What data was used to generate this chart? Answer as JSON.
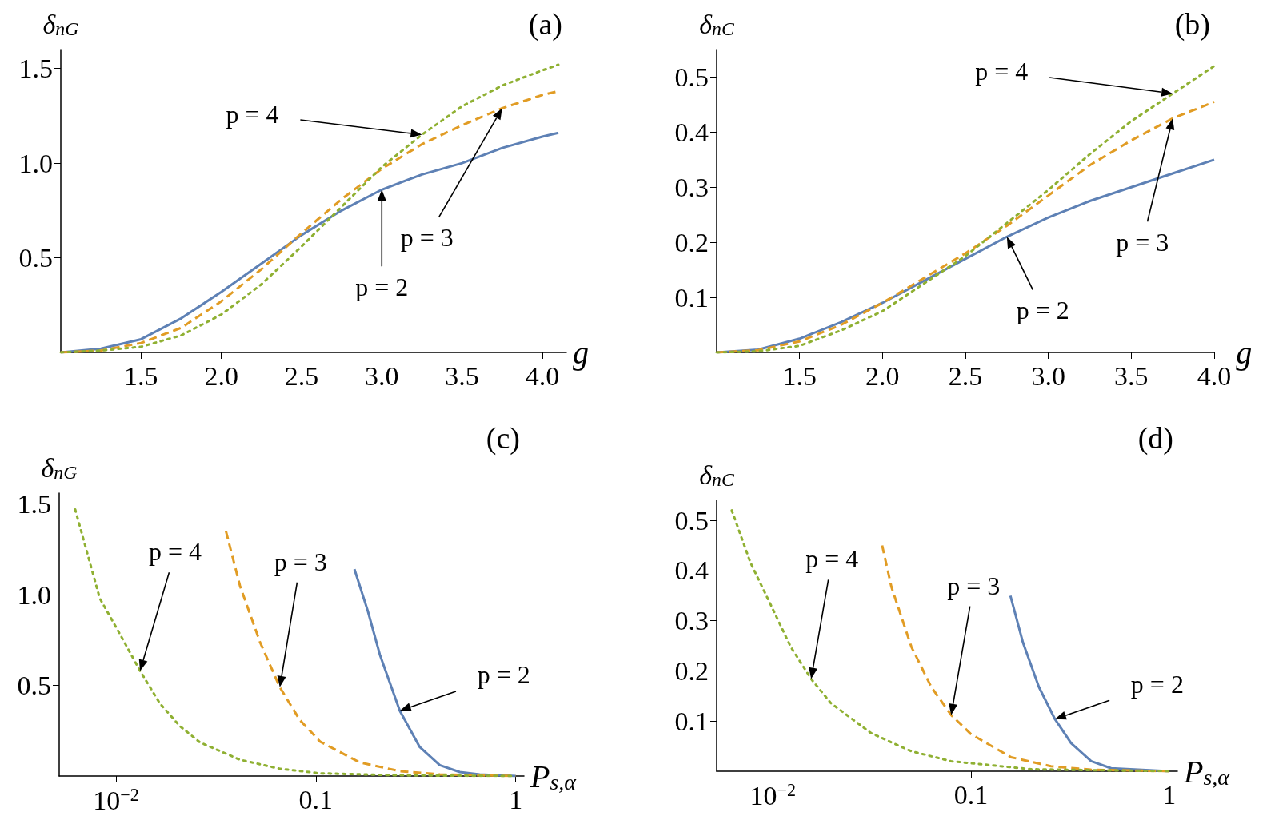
{
  "chart_data": [
    {
      "type": "line",
      "title": "(a)",
      "xlabel": "g",
      "ylabel": "δ$_{nG}$",
      "xlim": [
        1,
        4.15
      ],
      "ylim": [
        0,
        1.6
      ],
      "xticks": [
        1.5,
        {
          "value": 2,
          "label": "2.0"
        },
        2.5,
        {
          "value": 3,
          "label": "3.0"
        },
        3.5,
        {
          "value": 4,
          "label": "4.0"
        }
      ],
      "yticks": [
        0.5,
        {
          "value": 1,
          "label": "1.0"
        },
        1.5
      ],
      "series": [
        {
          "color": "#5e81b5",
          "line_style": "solid",
          "x": [
            1,
            1.25,
            1.5,
            1.75,
            2,
            2.25,
            2.5,
            2.75,
            3,
            3.25,
            3.5,
            3.75,
            4,
            4.1
          ],
          "values": [
            0,
            0.02,
            0.07,
            0.18,
            0.32,
            0.47,
            0.62,
            0.75,
            0.86,
            0.94,
            1,
            1.08,
            1.14,
            1.16
          ]
        },
        {
          "color": "#e19c24",
          "line_style": "dashed",
          "x": [
            1,
            1.25,
            1.5,
            1.75,
            2,
            2.25,
            2.5,
            2.75,
            3,
            3.25,
            3.5,
            3.75,
            4,
            4.1
          ],
          "values": [
            0,
            0.01,
            0.05,
            0.13,
            0.27,
            0.44,
            0.63,
            0.81,
            0.97,
            1.1,
            1.2,
            1.29,
            1.36,
            1.38
          ]
        },
        {
          "color": "#8fb032",
          "line_style": "dotted",
          "x": [
            1,
            1.25,
            1.5,
            1.75,
            2,
            2.25,
            2.5,
            2.75,
            3,
            3.25,
            3.5,
            3.75,
            4,
            4.1
          ],
          "values": [
            0,
            0.01,
            0.03,
            0.09,
            0.2,
            0.36,
            0.56,
            0.77,
            0.98,
            1.15,
            1.3,
            1.41,
            1.49,
            1.52
          ]
        }
      ],
      "annotations": [
        "p = 4",
        "p = 3",
        "p = 2"
      ]
    },
    {
      "type": "line",
      "title": "(b)",
      "xlabel": "g",
      "ylabel": "δ$_{nC}$",
      "xlim": [
        1,
        4
      ],
      "ylim": [
        0,
        0.55
      ],
      "xticks": [
        1.5,
        {
          "value": 2,
          "label": "2.0"
        },
        2.5,
        {
          "value": 3,
          "label": "3.0"
        },
        3.5,
        {
          "value": 4,
          "label": "4.0"
        }
      ],
      "yticks": [
        0.1,
        0.2,
        0.3,
        0.4,
        0.5
      ],
      "series": [
        {
          "color": "#5e81b5",
          "line_style": "solid",
          "x": [
            1,
            1.25,
            1.5,
            1.75,
            2,
            2.25,
            2.5,
            2.75,
            3,
            3.25,
            3.5,
            3.75,
            4
          ],
          "values": [
            0,
            0.005,
            0.025,
            0.055,
            0.09,
            0.13,
            0.17,
            0.21,
            0.245,
            0.275,
            0.3,
            0.325,
            0.35
          ]
        },
        {
          "color": "#e19c24",
          "line_style": "dashed",
          "x": [
            1,
            1.25,
            1.5,
            1.75,
            2,
            2.25,
            2.5,
            2.75,
            3,
            3.25,
            3.5,
            3.75,
            4
          ],
          "values": [
            0,
            0.004,
            0.02,
            0.05,
            0.09,
            0.135,
            0.18,
            0.23,
            0.285,
            0.34,
            0.385,
            0.425,
            0.455
          ]
        },
        {
          "color": "#8fb032",
          "line_style": "dotted",
          "x": [
            1,
            1.25,
            1.5,
            1.75,
            2,
            2.25,
            2.5,
            2.75,
            3,
            3.25,
            3.5,
            3.75,
            4
          ],
          "values": [
            0,
            0.002,
            0.012,
            0.04,
            0.075,
            0.125,
            0.175,
            0.235,
            0.295,
            0.36,
            0.42,
            0.47,
            0.52
          ]
        }
      ],
      "annotations": [
        "p = 4",
        "p = 3",
        "p = 2"
      ]
    },
    {
      "type": "line",
      "title": "(c)",
      "xlabel": "P$_{s,α}$",
      "ylabel": "δ$_{nG}$",
      "log": "x",
      "xlim": [
        0.0052,
        1.1
      ],
      "ylim": [
        0,
        1.56
      ],
      "xticks": [
        {
          "value": 0.01,
          "label": "10$^{−2}$"
        },
        0.1,
        1
      ],
      "yticks": [
        0.5,
        {
          "value": 1,
          "label": "1.0"
        },
        1.5
      ],
      "series": [
        {
          "color": "#5e81b5",
          "line_style": "solid",
          "x": [
            0.156,
            0.182,
            0.209,
            0.263,
            0.331,
            0.417,
            0.525,
            0.66,
            1
          ],
          "values": [
            1.14,
            0.91,
            0.67,
            0.36,
            0.16,
            0.06,
            0.022,
            0.009,
            0
          ]
        },
        {
          "color": "#e19c24",
          "line_style": "dashed",
          "x": [
            0.0355,
            0.0417,
            0.0525,
            0.066,
            0.083,
            0.105,
            0.166,
            0.263,
            0.417,
            1
          ],
          "values": [
            1.35,
            1.05,
            0.74,
            0.49,
            0.31,
            0.19,
            0.075,
            0.027,
            0.009,
            0
          ]
        },
        {
          "color": "#8fb032",
          "line_style": "dotted",
          "x": [
            0.00625,
            0.0083,
            0.0105,
            0.0132,
            0.0166,
            0.0209,
            0.0263,
            0.0417,
            0.066,
            0.105,
            0.263,
            1
          ],
          "values": [
            1.47,
            0.98,
            0.78,
            0.58,
            0.4,
            0.275,
            0.186,
            0.09,
            0.04,
            0.015,
            0.004,
            0
          ]
        }
      ],
      "annotations": [
        "p = 4",
        "p = 3",
        "p = 2"
      ]
    },
    {
      "type": "line",
      "title": "(d)",
      "xlabel": "P$_{s,α}$",
      "ylabel": "δ$_{nC}$",
      "log": "x",
      "xlim": [
        0.0052,
        1.1
      ],
      "ylim": [
        0,
        0.54
      ],
      "xticks": [
        {
          "value": 0.01,
          "label": "10$^{−2}$"
        },
        0.1,
        1
      ],
      "yticks": [
        0.1,
        0.2,
        0.3,
        0.4,
        0.5
      ],
      "series": [
        {
          "color": "#5e81b5",
          "line_style": "solid",
          "x": [
            0.158,
            0.183,
            0.22,
            0.265,
            0.32,
            0.404,
            0.509,
            1
          ],
          "values": [
            0.35,
            0.256,
            0.168,
            0.104,
            0.056,
            0.02,
            0.006,
            0
          ]
        },
        {
          "color": "#e19c24",
          "line_style": "dashed",
          "x": [
            0.0356,
            0.0396,
            0.05,
            0.063,
            0.0794,
            0.1,
            0.159,
            0.253,
            0.402,
            1
          ],
          "values": [
            0.45,
            0.368,
            0.248,
            0.168,
            0.112,
            0.074,
            0.028,
            0.01,
            0.003,
            0
          ]
        },
        {
          "color": "#8fb032",
          "line_style": "dotted",
          "x": [
            0.0062,
            0.0077,
            0.0098,
            0.0123,
            0.0156,
            0.0196,
            0.0313,
            0.0498,
            0.0793,
            0.201,
            1
          ],
          "values": [
            0.52,
            0.416,
            0.33,
            0.248,
            0.184,
            0.136,
            0.076,
            0.04,
            0.02,
            0.004,
            0
          ]
        }
      ],
      "annotations": [
        "p = 4",
        "p = 3",
        "p = 2"
      ]
    }
  ]
}
